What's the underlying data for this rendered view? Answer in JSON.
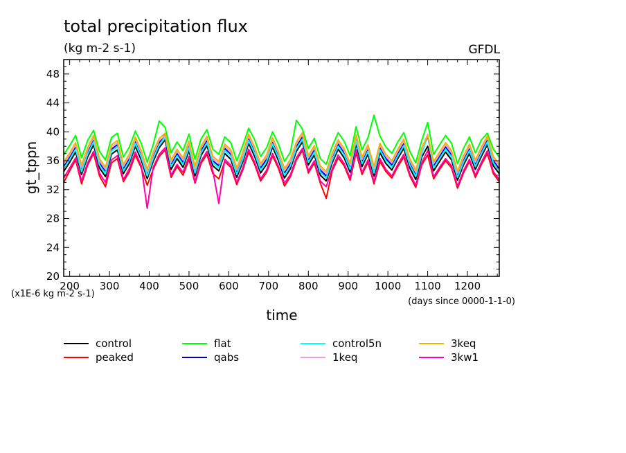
{
  "chart_data": {
    "type": "line",
    "title": "total precipitation flux",
    "subtitle": "(kg m-2 s-1)",
    "source_label": "GFDL",
    "xlabel": "time",
    "ylabel": "gt_tppn",
    "x_units_note": "(days since 0000-1-1-0)",
    "y_scale_note": "(x1E-6 kg m-2 s-1)",
    "xlim": [
      185,
      1280
    ],
    "ylim": [
      20,
      50
    ],
    "x_ticks": [
      "200",
      "300",
      "400",
      "500",
      "600",
      "700",
      "800",
      "900",
      "1000",
      "1100",
      "1200"
    ],
    "y_ticks": [
      "20",
      "24",
      "28",
      "32",
      "36",
      "40",
      "44",
      "48"
    ],
    "grid": false,
    "legend_position": "bottom",
    "x": [
      185,
      200,
      215,
      230,
      245,
      260,
      275,
      290,
      305,
      320,
      335,
      350,
      365,
      380,
      395,
      410,
      425,
      440,
      455,
      470,
      485,
      500,
      515,
      530,
      545,
      560,
      575,
      590,
      605,
      620,
      635,
      650,
      665,
      680,
      695,
      710,
      725,
      740,
      755,
      770,
      785,
      800,
      815,
      830,
      845,
      860,
      875,
      890,
      905,
      920,
      935,
      950,
      965,
      980,
      995,
      1010,
      1025,
      1040,
      1055,
      1070,
      1085,
      1100,
      1115,
      1130,
      1145,
      1160,
      1175,
      1190,
      1205,
      1220,
      1235,
      1250,
      1265,
      1280
    ],
    "series": [
      {
        "name": "control",
        "color": "#000000",
        "values": [
          34.5,
          35.8,
          37.2,
          34.1,
          36.5,
          38.2,
          35.0,
          33.8,
          36.9,
          37.5,
          34.2,
          35.6,
          38.0,
          36.1,
          33.5,
          35.9,
          37.8,
          38.9,
          34.8,
          36.3,
          35.1,
          37.4,
          33.9,
          36.7,
          38.1,
          35.3,
          34.6,
          37.0,
          36.2,
          33.7,
          35.8,
          38.4,
          36.6,
          34.3,
          35.5,
          37.9,
          36.0,
          33.6,
          34.9,
          37.3,
          38.6,
          35.4,
          36.8,
          34.0,
          33.2,
          35.7,
          37.6,
          36.4,
          34.4,
          38.3,
          35.2,
          36.9,
          33.9,
          37.1,
          35.6,
          34.7,
          36.3,
          37.7,
          35.0,
          33.4,
          36.5,
          38.0,
          34.6,
          35.9,
          37.2,
          36.1,
          33.3,
          35.4,
          37.0,
          34.8,
          36.6,
          38.2,
          35.3,
          34.2
        ]
      },
      {
        "name": "peaked",
        "color": "#ff0000",
        "values": [
          33.0,
          34.6,
          36.1,
          32.8,
          35.4,
          37.0,
          33.9,
          32.4,
          35.7,
          36.3,
          33.1,
          34.5,
          36.8,
          35.0,
          32.6,
          34.8,
          36.6,
          37.5,
          33.7,
          35.2,
          34.0,
          36.2,
          32.9,
          35.6,
          36.9,
          34.2,
          33.5,
          35.9,
          35.1,
          32.7,
          34.7,
          37.2,
          35.5,
          33.2,
          34.4,
          36.7,
          34.9,
          32.5,
          33.8,
          36.1,
          37.4,
          34.3,
          35.7,
          32.9,
          30.8,
          34.6,
          36.4,
          35.3,
          33.3,
          37.1,
          34.1,
          35.8,
          32.8,
          35.9,
          34.5,
          33.6,
          35.2,
          36.5,
          33.9,
          32.3,
          35.4,
          36.8,
          33.5,
          34.8,
          36.0,
          35.0,
          32.2,
          34.3,
          35.9,
          33.7,
          35.5,
          37.0,
          34.2,
          33.1
        ]
      },
      {
        "name": "flat",
        "color": "#00ff00",
        "values": [
          36.8,
          38.1,
          39.5,
          36.4,
          38.8,
          40.2,
          37.3,
          36.1,
          39.2,
          39.8,
          36.5,
          37.9,
          40.1,
          38.4,
          35.8,
          38.2,
          41.5,
          40.6,
          37.1,
          38.6,
          37.4,
          39.7,
          36.2,
          39.0,
          40.3,
          37.6,
          36.9,
          39.3,
          38.5,
          36.0,
          38.1,
          40.5,
          38.9,
          36.6,
          37.8,
          40.0,
          38.3,
          35.9,
          37.2,
          41.6,
          40.4,
          37.7,
          39.1,
          36.3,
          35.5,
          38.0,
          39.9,
          38.7,
          36.7,
          40.7,
          37.5,
          39.2,
          42.3,
          39.4,
          37.9,
          37.0,
          38.6,
          39.9,
          37.3,
          35.7,
          38.8,
          41.3,
          36.9,
          38.2,
          39.5,
          38.4,
          35.6,
          37.7,
          39.3,
          37.1,
          38.9,
          39.8,
          37.6,
          36.5
        ]
      },
      {
        "name": "qabs",
        "color": "#0000cc",
        "values": [
          35.2,
          36.5,
          37.9,
          34.8,
          37.2,
          38.9,
          35.7,
          34.5,
          37.6,
          38.2,
          34.9,
          36.3,
          38.7,
          36.8,
          34.2,
          36.6,
          38.5,
          39.6,
          35.5,
          37.0,
          35.8,
          38.1,
          34.6,
          37.4,
          38.8,
          36.0,
          35.3,
          37.7,
          36.9,
          34.4,
          36.5,
          39.1,
          37.3,
          35.0,
          36.2,
          38.6,
          36.7,
          34.3,
          35.6,
          38.0,
          39.3,
          36.1,
          37.5,
          34.7,
          33.9,
          36.4,
          38.3,
          37.1,
          35.1,
          39.0,
          35.9,
          37.6,
          34.6,
          37.8,
          36.3,
          35.4,
          37.0,
          38.4,
          35.7,
          34.1,
          37.2,
          39.4,
          35.3,
          36.6,
          37.9,
          36.8,
          34.0,
          36.1,
          37.7,
          35.5,
          37.3,
          38.9,
          36.0,
          34.9
        ]
      },
      {
        "name": "control5n",
        "color": "#00ffff",
        "values": [
          34.9,
          36.2,
          37.6,
          34.5,
          36.9,
          38.6,
          35.4,
          34.2,
          37.3,
          37.9,
          34.6,
          36.0,
          38.4,
          36.5,
          33.9,
          36.3,
          38.2,
          39.3,
          35.2,
          36.7,
          35.5,
          37.8,
          34.3,
          37.1,
          38.5,
          35.7,
          35.0,
          37.4,
          36.6,
          34.1,
          36.2,
          38.8,
          37.0,
          34.7,
          35.9,
          38.3,
          36.4,
          34.0,
          35.3,
          37.7,
          39.0,
          35.8,
          37.2,
          34.4,
          33.6,
          36.1,
          38.0,
          36.8,
          34.8,
          38.7,
          35.6,
          37.3,
          34.3,
          37.5,
          36.0,
          35.1,
          36.7,
          38.1,
          35.4,
          33.8,
          36.9,
          39.6,
          35.0,
          36.3,
          37.6,
          36.5,
          33.7,
          35.8,
          37.4,
          35.2,
          37.0,
          38.6,
          35.7,
          34.6
        ]
      },
      {
        "name": "1keq",
        "color": "#e6a0e6",
        "values": [
          35.5,
          36.8,
          38.2,
          35.1,
          37.5,
          39.2,
          36.0,
          34.8,
          37.9,
          38.5,
          35.2,
          36.6,
          39.0,
          37.1,
          34.5,
          36.9,
          38.8,
          39.5,
          35.8,
          37.3,
          36.1,
          38.4,
          34.9,
          37.7,
          39.1,
          36.3,
          35.6,
          38.0,
          37.2,
          34.7,
          36.8,
          39.4,
          37.6,
          35.3,
          36.5,
          38.9,
          37.0,
          34.6,
          35.9,
          38.3,
          39.6,
          36.4,
          37.8,
          35.0,
          34.2,
          36.7,
          38.6,
          37.4,
          35.4,
          39.3,
          36.2,
          37.9,
          34.9,
          38.1,
          36.6,
          35.7,
          37.3,
          38.7,
          36.0,
          34.4,
          37.5,
          39.7,
          35.6,
          36.9,
          38.2,
          37.1,
          34.3,
          36.4,
          38.0,
          35.8,
          37.6,
          39.2,
          36.3,
          35.2
        ]
      },
      {
        "name": "3keq",
        "color": "#f0b400",
        "values": [
          35.8,
          37.1,
          38.5,
          35.4,
          37.8,
          39.5,
          36.3,
          35.1,
          38.2,
          38.8,
          35.5,
          36.9,
          39.3,
          37.4,
          34.8,
          37.2,
          39.1,
          39.8,
          36.1,
          37.6,
          36.4,
          38.7,
          35.2,
          38.0,
          39.4,
          36.6,
          35.9,
          38.3,
          37.5,
          35.0,
          37.1,
          39.7,
          37.9,
          35.6,
          36.8,
          39.2,
          37.3,
          34.9,
          36.2,
          38.6,
          39.9,
          36.7,
          38.1,
          35.3,
          34.5,
          37.0,
          38.9,
          37.7,
          35.7,
          39.6,
          36.5,
          38.2,
          35.2,
          38.4,
          36.9,
          36.0,
          37.6,
          39.0,
          36.3,
          34.7,
          37.8,
          39.5,
          35.9,
          37.2,
          38.5,
          37.4,
          34.6,
          36.7,
          38.3,
          36.1,
          37.9,
          39.4,
          36.6,
          35.5
        ]
      },
      {
        "name": "3kw1",
        "color": "#ff00aa",
        "values": [
          33.6,
          35.0,
          36.4,
          33.2,
          35.7,
          37.3,
          34.3,
          33.0,
          36.1,
          36.7,
          33.4,
          34.9,
          37.2,
          35.3,
          29.4,
          35.1,
          36.9,
          37.8,
          34.0,
          35.5,
          34.4,
          36.6,
          33.1,
          35.9,
          37.3,
          34.6,
          30.1,
          36.2,
          35.4,
          33.0,
          35.0,
          37.6,
          35.8,
          33.5,
          34.7,
          37.0,
          35.2,
          32.9,
          34.1,
          36.4,
          37.7,
          34.6,
          36.0,
          33.2,
          32.4,
          34.9,
          36.8,
          35.6,
          33.6,
          37.5,
          34.4,
          36.1,
          33.1,
          36.3,
          34.8,
          33.9,
          35.5,
          36.9,
          34.2,
          32.6,
          35.7,
          37.4,
          33.8,
          35.1,
          36.3,
          35.3,
          32.5,
          34.6,
          36.2,
          34.0,
          35.8,
          37.4,
          34.5,
          33.4
        ]
      }
    ]
  }
}
